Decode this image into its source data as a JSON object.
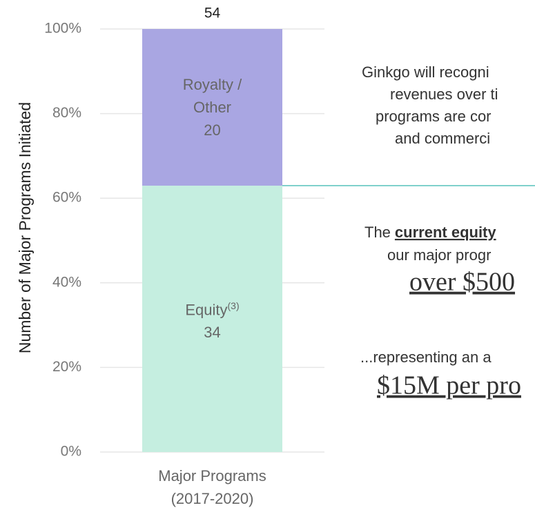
{
  "chart_data": {
    "type": "bar",
    "stack": "percent",
    "y_axis_label": "Number of Major Programs Initiated",
    "categories": [
      "Major Programs (2017-2020)"
    ],
    "series": [
      {
        "name": "Equity",
        "note": "(3)",
        "color": "#c5eee0",
        "values": [
          34
        ]
      },
      {
        "name": "Royalty / Other",
        "color": "#a9a6e2",
        "values": [
          20
        ]
      }
    ],
    "total": 54,
    "ylim": [
      0,
      100
    ],
    "yticks": [
      {
        "value": 0,
        "label": "0%"
      },
      {
        "value": 20,
        "label": "20%"
      },
      {
        "value": 40,
        "label": "40%"
      },
      {
        "value": 60,
        "label": "60%"
      },
      {
        "value": 80,
        "label": "80%"
      },
      {
        "value": 100,
        "label": "100%"
      }
    ],
    "grid": true,
    "divider_color": "#7fd0cc",
    "annotations": [
      "Ginkgo will recogni",
      "revenues over ti",
      "programs are cor",
      "and commerci",
      [
        "The",
        "current equity"
      ],
      "our major progr",
      "over $500",
      "...representing an a",
      "$15M per pro"
    ]
  }
}
